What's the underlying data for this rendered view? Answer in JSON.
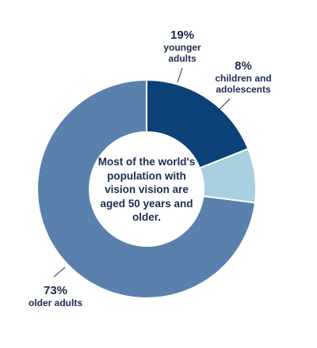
{
  "chart_data": {
    "type": "pie",
    "donut": true,
    "center_text": "Most of the world's population with vision vision are aged 50 years and older.",
    "slices": [
      {
        "label": "younger adults",
        "pct_label": "19%",
        "value": 19,
        "color": "#0c4278"
      },
      {
        "label": "children and adolescents",
        "pct_label": "8%",
        "value": 8,
        "color": "#a8d0e0"
      },
      {
        "label": "older adults",
        "pct_label": "73%",
        "value": 73,
        "color": "#5a80ad"
      }
    ]
  }
}
